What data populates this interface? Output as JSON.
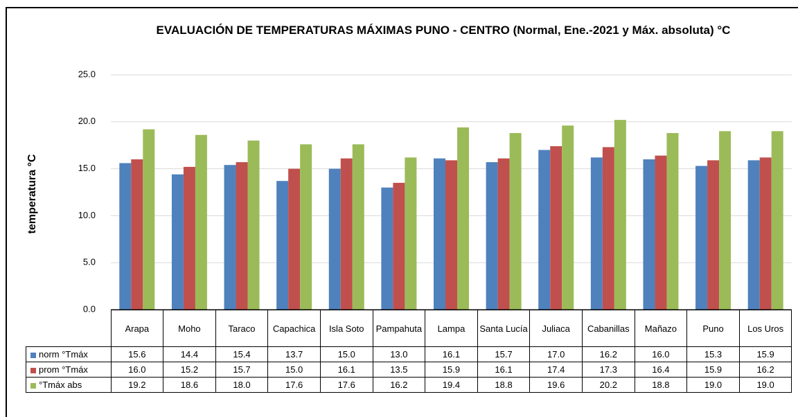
{
  "chart_data": {
    "type": "bar",
    "title": "EVALUACIÓN DE TEMPERATURAS MÁXIMAS PUNO - CENTRO (Normal, Ene.-2021 y Máx. absoluta) °C",
    "y_label": "temperatura °C",
    "categories": [
      "Arapa",
      "Moho",
      "Taraco",
      "Capachica",
      "Isla Soto",
      "Pampahuta",
      "Lampa",
      "Santa Lucía",
      "Juliaca",
      "Cabanillas",
      "Mañazo",
      "Puno",
      "Los Uros"
    ],
    "series": [
      {
        "name": "norm °Tmáx",
        "color": "#4f81bd",
        "values": [
          15.6,
          14.4,
          15.4,
          13.7,
          15.0,
          13.0,
          16.1,
          15.7,
          17.0,
          16.2,
          16.0,
          15.3,
          15.9
        ],
        "value_labels": [
          "15.6",
          "14.4",
          "15.4",
          "13.7",
          "15.0",
          "13.0",
          "16.1",
          "15.7",
          "17.0",
          "16.2",
          "16.0",
          "15.3",
          "15.9"
        ]
      },
      {
        "name": "prom °Tmáx",
        "color": "#c0504d",
        "values": [
          16.0,
          15.2,
          15.7,
          15.0,
          16.1,
          13.5,
          15.9,
          16.1,
          17.4,
          17.3,
          16.4,
          15.9,
          16.2
        ],
        "value_labels": [
          "16.0",
          "15.2",
          "15.7",
          "15.0",
          "16.1",
          "13.5",
          "15.9",
          "16.1",
          "17.4",
          "17.3",
          "16.4",
          "15.9",
          "16.2"
        ]
      },
      {
        "name": "°Tmáx abs",
        "color": "#9bbb59",
        "values": [
          19.2,
          18.6,
          18.0,
          17.6,
          17.6,
          16.2,
          19.4,
          18.8,
          19.6,
          20.2,
          18.8,
          19.0,
          19.0
        ],
        "value_labels": [
          "19.2",
          "18.6",
          "18.0",
          "17.6",
          "17.6",
          "16.2",
          "19.4",
          "18.8",
          "19.6",
          "20.2",
          "18.8",
          "19.0",
          "19.0"
        ]
      }
    ],
    "ylim": [
      0,
      25
    ],
    "yticks": [
      {
        "value": 0,
        "label": "0.0"
      },
      {
        "value": 5,
        "label": "5.0"
      },
      {
        "value": 10,
        "label": "10.0"
      },
      {
        "value": 15,
        "label": "15.0"
      },
      {
        "value": 20,
        "label": "20.0"
      },
      {
        "value": 25,
        "label": "25.0"
      }
    ],
    "grid": true
  }
}
